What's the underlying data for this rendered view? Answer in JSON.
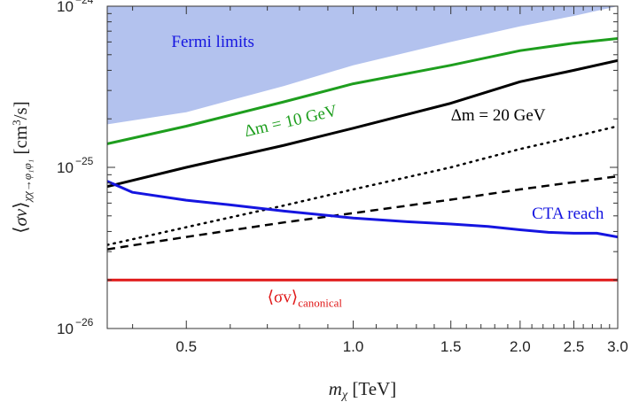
{
  "chart_data": {
    "type": "line",
    "xlabel": "m_χ [TeV]",
    "ylabel": "⟨σv⟩_{χχ→φ1φ1} [cm³/s]",
    "x_scale": "log",
    "y_scale": "log",
    "xlim": [
      0.36,
      3.0
    ],
    "ylim": [
      1e-26,
      1e-24
    ],
    "x_ticks": [
      0.5,
      1.0,
      1.5,
      2.0,
      2.5,
      3.0
    ],
    "x_tick_labels": [
      "0.5",
      "1.0",
      "1.5",
      "2.0",
      "2.5",
      "3.0"
    ],
    "y_ticks": [
      1e-26,
      1e-25,
      1e-24
    ],
    "y_tick_labels": [
      "10",
      "10",
      "10"
    ],
    "y_tick_exponents": [
      "−26",
      "−25",
      "−24"
    ],
    "series": [
      {
        "name": "Fermi limits",
        "kind": "filled-region",
        "color": "#b3c2ee",
        "x": [
          0.36,
          0.5,
          0.75,
          1.0,
          1.5,
          2.0,
          2.5,
          2.8,
          3.0
        ],
        "y": [
          1.85e-25,
          2.2e-25,
          3.2e-25,
          4.3e-25,
          6e-25,
          7.5e-25,
          8.7e-25,
          9.5e-25,
          1e-24
        ]
      },
      {
        "name": "Δm = 10 GeV",
        "color": "#1e9e1e",
        "x": [
          0.36,
          0.5,
          0.75,
          1.0,
          1.5,
          2.0,
          2.5,
          3.0
        ],
        "y": [
          1.4e-25,
          1.8e-25,
          2.55e-25,
          3.3e-25,
          4.3e-25,
          5.3e-25,
          5.9e-25,
          6.3e-25
        ]
      },
      {
        "name": "Δm = 20 GeV",
        "color": "#000000",
        "x": [
          0.36,
          0.5,
          0.75,
          1.0,
          1.5,
          2.0,
          2.5,
          3.0
        ],
        "y": [
          7.6e-26,
          1e-25,
          1.37e-25,
          1.75e-25,
          2.5e-25,
          3.4e-25,
          4e-25,
          4.6e-25
        ]
      },
      {
        "name": "",
        "style": "dotted",
        "color": "#000000",
        "x": [
          0.36,
          0.5,
          0.75,
          1.0,
          1.5,
          2.0,
          2.5,
          3.0
        ],
        "y": [
          3.3e-26,
          4.25e-26,
          5.8e-26,
          7.3e-26,
          1e-25,
          1.3e-25,
          1.55e-25,
          1.8e-25
        ]
      },
      {
        "name": "",
        "style": "dashed",
        "color": "#000000",
        "x": [
          0.36,
          0.5,
          0.75,
          1.0,
          1.5,
          2.0,
          2.5,
          3.0
        ],
        "y": [
          3.1e-26,
          3.7e-26,
          4.55e-26,
          5.2e-26,
          6.3e-26,
          7.3e-26,
          8.1e-26,
          8.8e-26
        ]
      },
      {
        "name": "CTA reach",
        "color": "#1515e0",
        "x": [
          0.36,
          0.4,
          0.5,
          0.6,
          0.75,
          1.0,
          1.25,
          1.5,
          1.75,
          2.0,
          2.25,
          2.5,
          2.75,
          3.0
        ],
        "y": [
          8.2e-26,
          7e-26,
          6.25e-26,
          5.85e-26,
          5.35e-26,
          4.85e-26,
          4.6e-26,
          4.45e-26,
          4.3e-26,
          4.1e-26,
          3.95e-26,
          3.9e-26,
          3.9e-26,
          3.7e-26
        ]
      },
      {
        "name": "⟨σv⟩canonical",
        "color": "#e01818",
        "x": [
          0.36,
          3.0
        ],
        "y": [
          2e-26,
          2e-26
        ]
      }
    ],
    "annotations": [
      {
        "text": "Fermi limits",
        "color": "#1515e0",
        "x": 0.47,
        "y": 5.6e-25
      },
      {
        "text": "Δm = 10 GeV",
        "color": "#1e9e1e",
        "x": 0.64,
        "y": 1.55e-25,
        "rotation_deg": -13
      },
      {
        "text": "Δm = 20 GeV",
        "color": "#000000",
        "x": 1.5,
        "y": 1.95e-25
      },
      {
        "text": "CTA reach",
        "color": "#1515e0",
        "x": 2.1,
        "y": 4.8e-26
      },
      {
        "text": "⟨σv⟩",
        "sub": "canonical",
        "color": "#e01818",
        "x": 0.7,
        "y": 1.45e-26
      }
    ]
  }
}
